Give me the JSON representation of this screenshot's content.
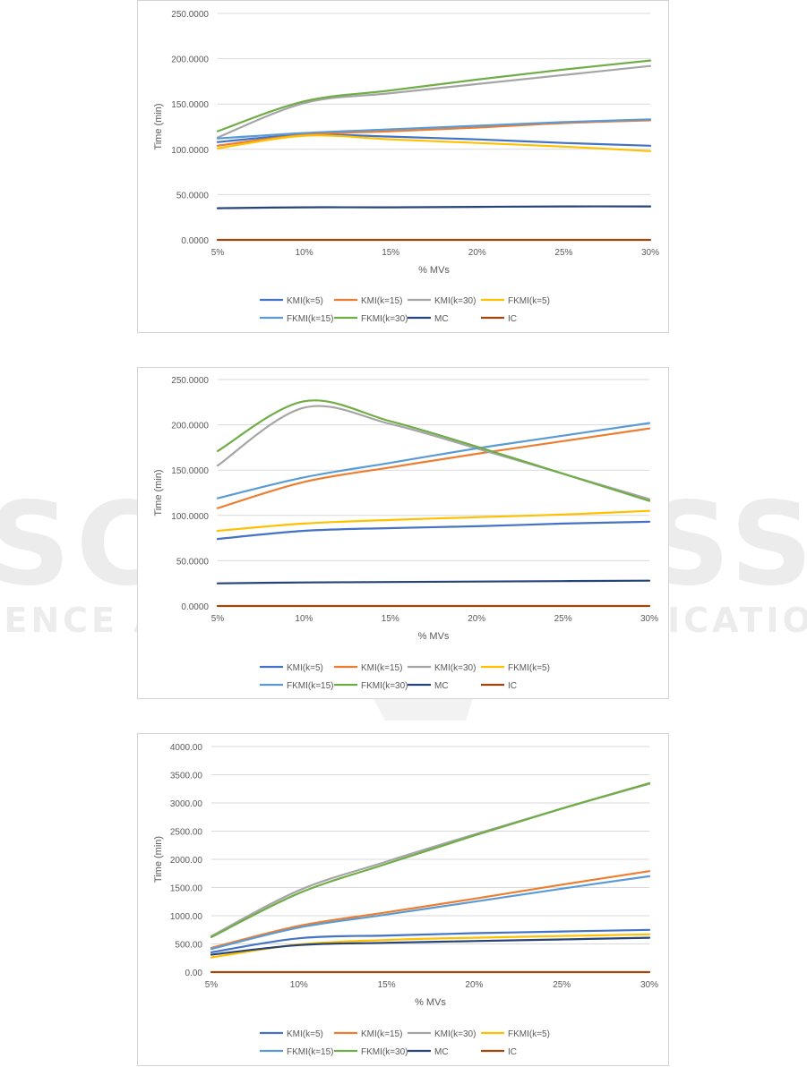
{
  "watermark": {
    "main_text": "SCITEPRESS",
    "sub_text": "SCIENCE AND TECHNOLOGY PUBLICATIONS"
  },
  "colors": {
    "KMI(k=5)": "#4472c4",
    "KMI(k=15)": "#ed7d31",
    "KMI(k=30)": "#a5a5a5",
    "FKMI(k=5)": "#ffc000",
    "FKMI(k=15)": "#5b9bd5",
    "FKMI(k=30)": "#70ad47",
    "MC": "#264478",
    "IC": "#9e480e"
  },
  "chart_data": [
    {
      "type": "line",
      "xlabel": "% MVs",
      "ylabel": "Time (min)",
      "x": [
        "5%",
        "10%",
        "15%",
        "20%",
        "25%",
        "30%"
      ],
      "ylim": [
        0,
        250
      ],
      "yticks": [
        "0.0000",
        "50.0000",
        "100.0000",
        "150.0000",
        "200.0000",
        "250.0000"
      ],
      "grid": true,
      "legend": "bottom",
      "series": [
        {
          "name": "KMI(k=5)",
          "values": [
            108,
            116,
            114,
            111,
            107,
            104
          ]
        },
        {
          "name": "KMI(k=15)",
          "values": [
            104,
            116,
            120,
            124,
            129,
            132
          ]
        },
        {
          "name": "KMI(k=30)",
          "values": [
            113,
            151,
            162,
            172,
            182,
            192
          ]
        },
        {
          "name": "FKMI(k=5)",
          "values": [
            101,
            115,
            111,
            107,
            103,
            98
          ]
        },
        {
          "name": "FKMI(k=15)",
          "values": [
            112,
            118,
            122,
            126,
            130,
            133
          ]
        },
        {
          "name": "FKMI(k=30)",
          "values": [
            120,
            153,
            165,
            177,
            188,
            198
          ]
        },
        {
          "name": "MC",
          "values": [
            35,
            36,
            36,
            36.5,
            37,
            37
          ]
        },
        {
          "name": "IC",
          "values": [
            0,
            0,
            0,
            0,
            0,
            0
          ]
        }
      ]
    },
    {
      "type": "line",
      "xlabel": "% MVs",
      "ylabel": "Time (min)",
      "x": [
        "5%",
        "10%",
        "15%",
        "20%",
        "25%",
        "30%"
      ],
      "ylim": [
        0,
        250
      ],
      "yticks": [
        "0.0000",
        "50.0000",
        "100.0000",
        "150.0000",
        "200.0000",
        "250.0000"
      ],
      "grid": true,
      "legend": "bottom",
      "series": [
        {
          "name": "KMI(k=5)",
          "values": [
            74,
            83,
            86,
            88,
            91,
            93
          ]
        },
        {
          "name": "KMI(k=15)",
          "values": [
            108,
            137,
            153,
            168,
            182,
            196
          ]
        },
        {
          "name": "KMI(k=30)",
          "values": [
            155,
            219,
            201,
            174,
            146,
            118
          ]
        },
        {
          "name": "FKMI(k=5)",
          "values": [
            83,
            91,
            95,
            98,
            101,
            105
          ]
        },
        {
          "name": "FKMI(k=15)",
          "values": [
            119,
            142,
            158,
            174,
            188,
            202
          ]
        },
        {
          "name": "FKMI(k=30)",
          "values": [
            171,
            226,
            204,
            176,
            146,
            116
          ]
        },
        {
          "name": "MC",
          "values": [
            25,
            26,
            26.5,
            27,
            27.5,
            28
          ]
        },
        {
          "name": "IC",
          "values": [
            0,
            0,
            0,
            0,
            0,
            0
          ]
        }
      ]
    },
    {
      "type": "line",
      "xlabel": "% MVs",
      "ylabel": "Time (min)",
      "x": [
        "5%",
        "10%",
        "15%",
        "20%",
        "25%",
        "30%"
      ],
      "ylim": [
        0,
        4000
      ],
      "yticks": [
        "0.00",
        "500.00",
        "1000.00",
        "1500.00",
        "2000.00",
        "2500.00",
        "3000.00",
        "3500.00",
        "4000.00"
      ],
      "grid": true,
      "legend": "bottom",
      "series": [
        {
          "name": "KMI(k=5)",
          "values": [
            350,
            600,
            650,
            690,
            720,
            750
          ]
        },
        {
          "name": "KMI(k=15)",
          "values": [
            430,
            820,
            1060,
            1300,
            1550,
            1790
          ]
        },
        {
          "name": "KMI(k=30)",
          "values": [
            640,
            1450,
            1960,
            2440,
            2900,
            3340
          ]
        },
        {
          "name": "FKMI(k=5)",
          "values": [
            260,
            490,
            570,
            610,
            640,
            670
          ]
        },
        {
          "name": "FKMI(k=15)",
          "values": [
            410,
            790,
            1020,
            1250,
            1480,
            1700
          ]
        },
        {
          "name": "FKMI(k=30)",
          "values": [
            620,
            1400,
            1920,
            2420,
            2900,
            3350
          ]
        },
        {
          "name": "MC",
          "values": [
            310,
            480,
            520,
            550,
            580,
            610
          ]
        },
        {
          "name": "IC",
          "values": [
            0,
            0,
            0,
            0,
            0,
            0
          ]
        }
      ]
    }
  ]
}
